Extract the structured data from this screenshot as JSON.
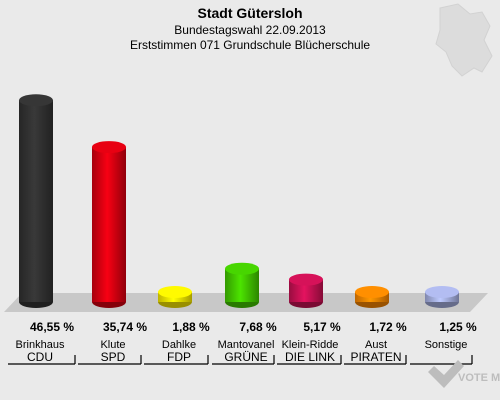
{
  "header": {
    "title": "Stadt Gütersloh",
    "subtitle1": "Bundestagswahl 22.09.2013",
    "subtitle2": "Erststimmen 071 Grundschule Blücherschule"
  },
  "watermark": {
    "text": "VOTE MANAGER"
  },
  "colors": {
    "background": "#eaeaea",
    "platform": "#c8c8c8",
    "text": "#000000"
  },
  "chart_data": {
    "type": "bar",
    "title": "Stadt Gütersloh",
    "ylim": [
      0,
      50
    ],
    "categories": [
      "Brinkhaus",
      "Klute",
      "Dahlke",
      "Mantovanel",
      "Klein-Ridde",
      "Aust",
      "Sonstige"
    ],
    "parties": [
      "CDU",
      "SPD",
      "FDP",
      "GRÜNE",
      "DIE LINK",
      "PIRATEN",
      ""
    ],
    "values": [
      46.55,
      35.74,
      1.88,
      7.68,
      5.17,
      1.72,
      1.25
    ],
    "labels": [
      "46,55 %",
      "35,74 %",
      "1,88 %",
      "7,68 %",
      "5,17 %",
      "1,72 %",
      "1,25 %"
    ],
    "colors": [
      "#333333",
      "#dd0011",
      "#ffee00",
      "#44cc00",
      "#cc1155",
      "#ff8800",
      "#aab4e6"
    ]
  }
}
